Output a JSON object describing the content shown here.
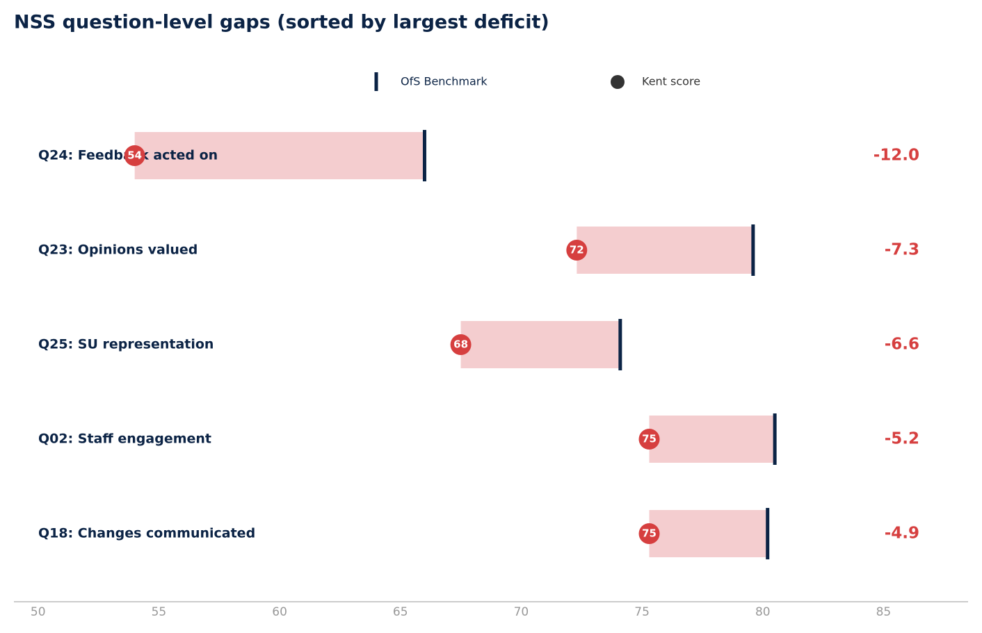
{
  "chart_data": {
    "type": "dumbbell",
    "title": "NSS question-level gaps (sorted by largest deficit)",
    "categories": [
      "Q24: Feedback acted on",
      "Q23: Opinions valued",
      "Q25: SU representation",
      "Q02: Staff engagement",
      "Q18: Changes communicated"
    ],
    "series": [
      {
        "name": "OfS Benchmark",
        "color": "#0b2345",
        "values": [
          66.0,
          79.6,
          74.1,
          80.5,
          80.2
        ]
      },
      {
        "name": "Kent score",
        "color": "#d63f3f",
        "values": [
          54.0,
          72.3,
          67.5,
          75.3,
          75.3
        ],
        "value_labels": [
          "54",
          "72",
          "68",
          "75",
          "75"
        ]
      }
    ],
    "gaps": {
      "color": "#d63f3f",
      "values": [
        -12.0,
        -7.3,
        -6.6,
        -5.2,
        -4.9
      ],
      "value_labels": [
        "-12.0",
        "-7.3",
        "-6.6",
        "-5.2",
        "-4.9"
      ]
    },
    "band_color": "#f4cdcf",
    "xlim": [
      49,
      88.5
    ],
    "xticks": [
      50,
      55,
      60,
      65,
      70,
      75,
      80,
      85
    ]
  }
}
